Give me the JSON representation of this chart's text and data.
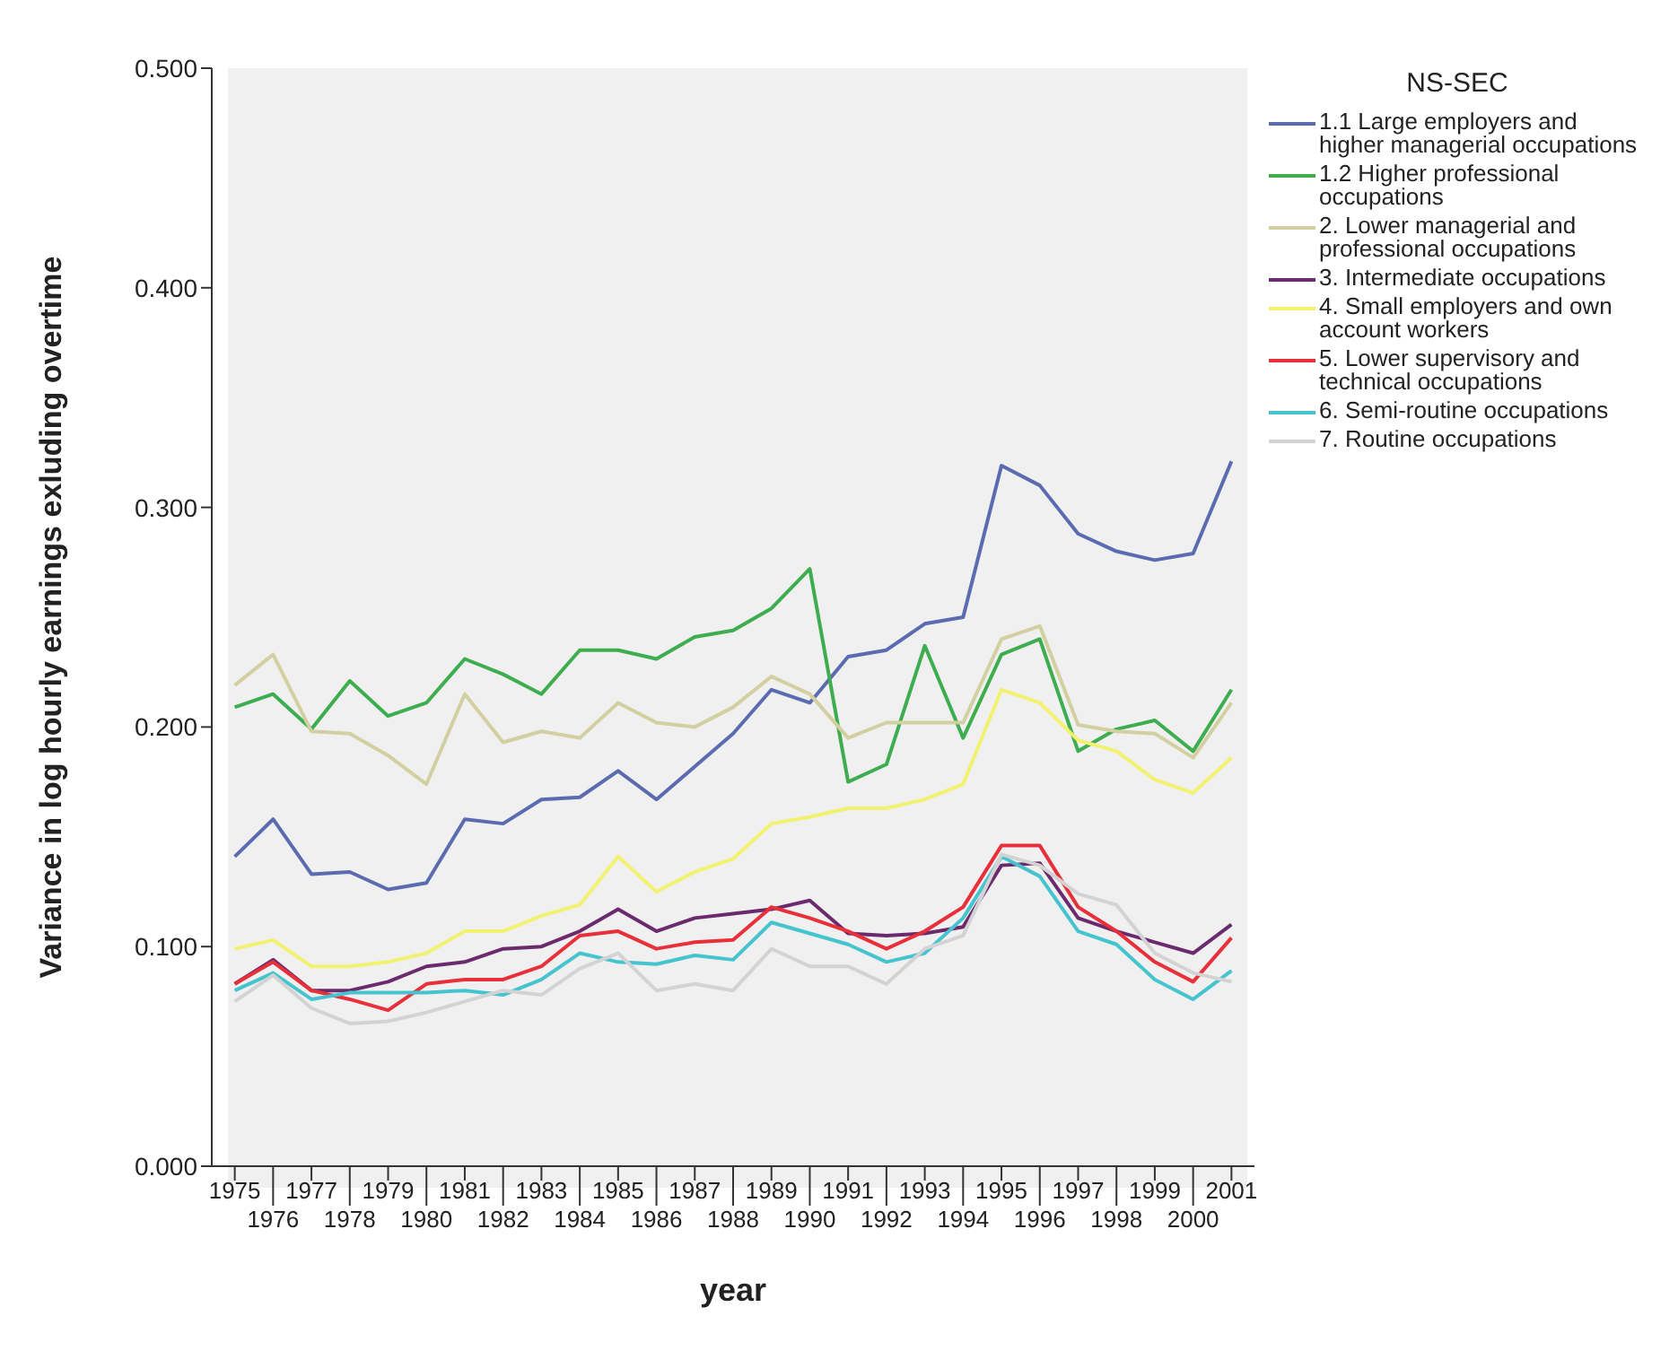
{
  "chart_data": {
    "type": "line",
    "xlabel": "year",
    "ylabel": "Variance in log hourly earnings exluding overtime",
    "legend_title": "NS-SEC",
    "legend": "right",
    "grid": false,
    "marker": "none",
    "line_style": "solid",
    "categories": [
      "1975",
      "1976",
      "1977",
      "1978",
      "1979",
      "1980",
      "1981",
      "1982",
      "1983",
      "1984",
      "1985",
      "1986",
      "1987",
      "1988",
      "1989",
      "1990",
      "1991",
      "1992",
      "1993",
      "1994",
      "1995",
      "1996",
      "1997",
      "1998",
      "1999",
      "2000",
      "2001"
    ],
    "ylim": [
      0,
      0.5
    ],
    "yticks": [
      {
        "value": 0,
        "label": "0.000"
      },
      {
        "value": 0.1,
        "label": "0.100"
      },
      {
        "value": 0.2,
        "label": "0.200"
      },
      {
        "value": 0.3,
        "label": "0.300"
      },
      {
        "value": 0.4,
        "label": "0.400"
      },
      {
        "value": 0.5,
        "label": "0.500"
      }
    ],
    "series": [
      {
        "name": "1.1 Large employers and higher managerial occupations",
        "color": "#5b6bb0",
        "values": [
          0.141,
          0.158,
          0.133,
          0.134,
          0.126,
          0.129,
          0.158,
          0.156,
          0.167,
          0.168,
          0.18,
          0.167,
          0.182,
          0.197,
          0.217,
          0.211,
          0.232,
          0.235,
          0.247,
          0.25,
          0.319,
          0.31,
          0.288,
          0.28,
          0.276,
          0.279,
          0.321
        ]
      },
      {
        "name": "1.2 Higher professional occupations",
        "color": "#3dad4f",
        "values": [
          0.209,
          0.215,
          0.199,
          0.221,
          0.205,
          0.211,
          0.231,
          0.224,
          0.215,
          0.235,
          0.235,
          0.231,
          0.241,
          0.244,
          0.254,
          0.272,
          0.175,
          0.183,
          0.237,
          0.195,
          0.233,
          0.24,
          0.189,
          0.199,
          0.203,
          0.189,
          0.217
        ]
      },
      {
        "name": "2. Lower managerial and professional occupations",
        "color": "#d2cfa0",
        "values": [
          0.219,
          0.233,
          0.198,
          0.197,
          0.187,
          0.174,
          0.215,
          0.193,
          0.198,
          0.195,
          0.211,
          0.202,
          0.2,
          0.209,
          0.223,
          0.215,
          0.195,
          0.202,
          0.202,
          0.202,
          0.24,
          0.246,
          0.201,
          0.198,
          0.197,
          0.186,
          0.211
        ]
      },
      {
        "name": "3. Intermediate occupations",
        "color": "#6b2a6e",
        "values": [
          0.083,
          0.094,
          0.08,
          0.08,
          0.084,
          0.091,
          0.093,
          0.099,
          0.1,
          0.107,
          0.117,
          0.107,
          0.113,
          0.115,
          0.117,
          0.121,
          0.106,
          0.105,
          0.106,
          0.109,
          0.137,
          0.138,
          0.113,
          0.107,
          0.102,
          0.097,
          0.11
        ]
      },
      {
        "name": "4. Small employers and own account workers",
        "color": "#f2f270",
        "values": [
          0.099,
          0.103,
          0.091,
          0.091,
          0.093,
          0.097,
          0.107,
          0.107,
          0.114,
          0.119,
          0.141,
          0.125,
          0.134,
          0.14,
          0.156,
          0.159,
          0.163,
          0.163,
          0.167,
          0.174,
          0.217,
          0.211,
          0.194,
          0.189,
          0.176,
          0.17,
          0.186
        ]
      },
      {
        "name": "5. Lower supervisory and technical occupations",
        "color": "#e8303a",
        "values": [
          0.083,
          0.093,
          0.08,
          0.076,
          0.071,
          0.083,
          0.085,
          0.085,
          0.091,
          0.105,
          0.107,
          0.099,
          0.102,
          0.103,
          0.118,
          0.113,
          0.107,
          0.099,
          0.107,
          0.118,
          0.146,
          0.146,
          0.118,
          0.107,
          0.093,
          0.084,
          0.104
        ]
      },
      {
        "name": "6. Semi-routine occupations",
        "color": "#45c4cf",
        "values": [
          0.08,
          0.088,
          0.076,
          0.079,
          0.079,
          0.079,
          0.08,
          0.078,
          0.085,
          0.097,
          0.093,
          0.092,
          0.096,
          0.094,
          0.111,
          0.106,
          0.101,
          0.093,
          0.097,
          0.113,
          0.141,
          0.132,
          0.107,
          0.101,
          0.085,
          0.076,
          0.089
        ]
      },
      {
        "name": "7. Routine occupations",
        "color": "#d3d3d3",
        "values": [
          0.075,
          0.087,
          0.072,
          0.065,
          0.066,
          0.07,
          0.075,
          0.08,
          0.078,
          0.09,
          0.097,
          0.08,
          0.083,
          0.08,
          0.099,
          0.091,
          0.091,
          0.083,
          0.099,
          0.105,
          0.142,
          0.137,
          0.124,
          0.119,
          0.097,
          0.088,
          0.084
        ]
      }
    ]
  }
}
